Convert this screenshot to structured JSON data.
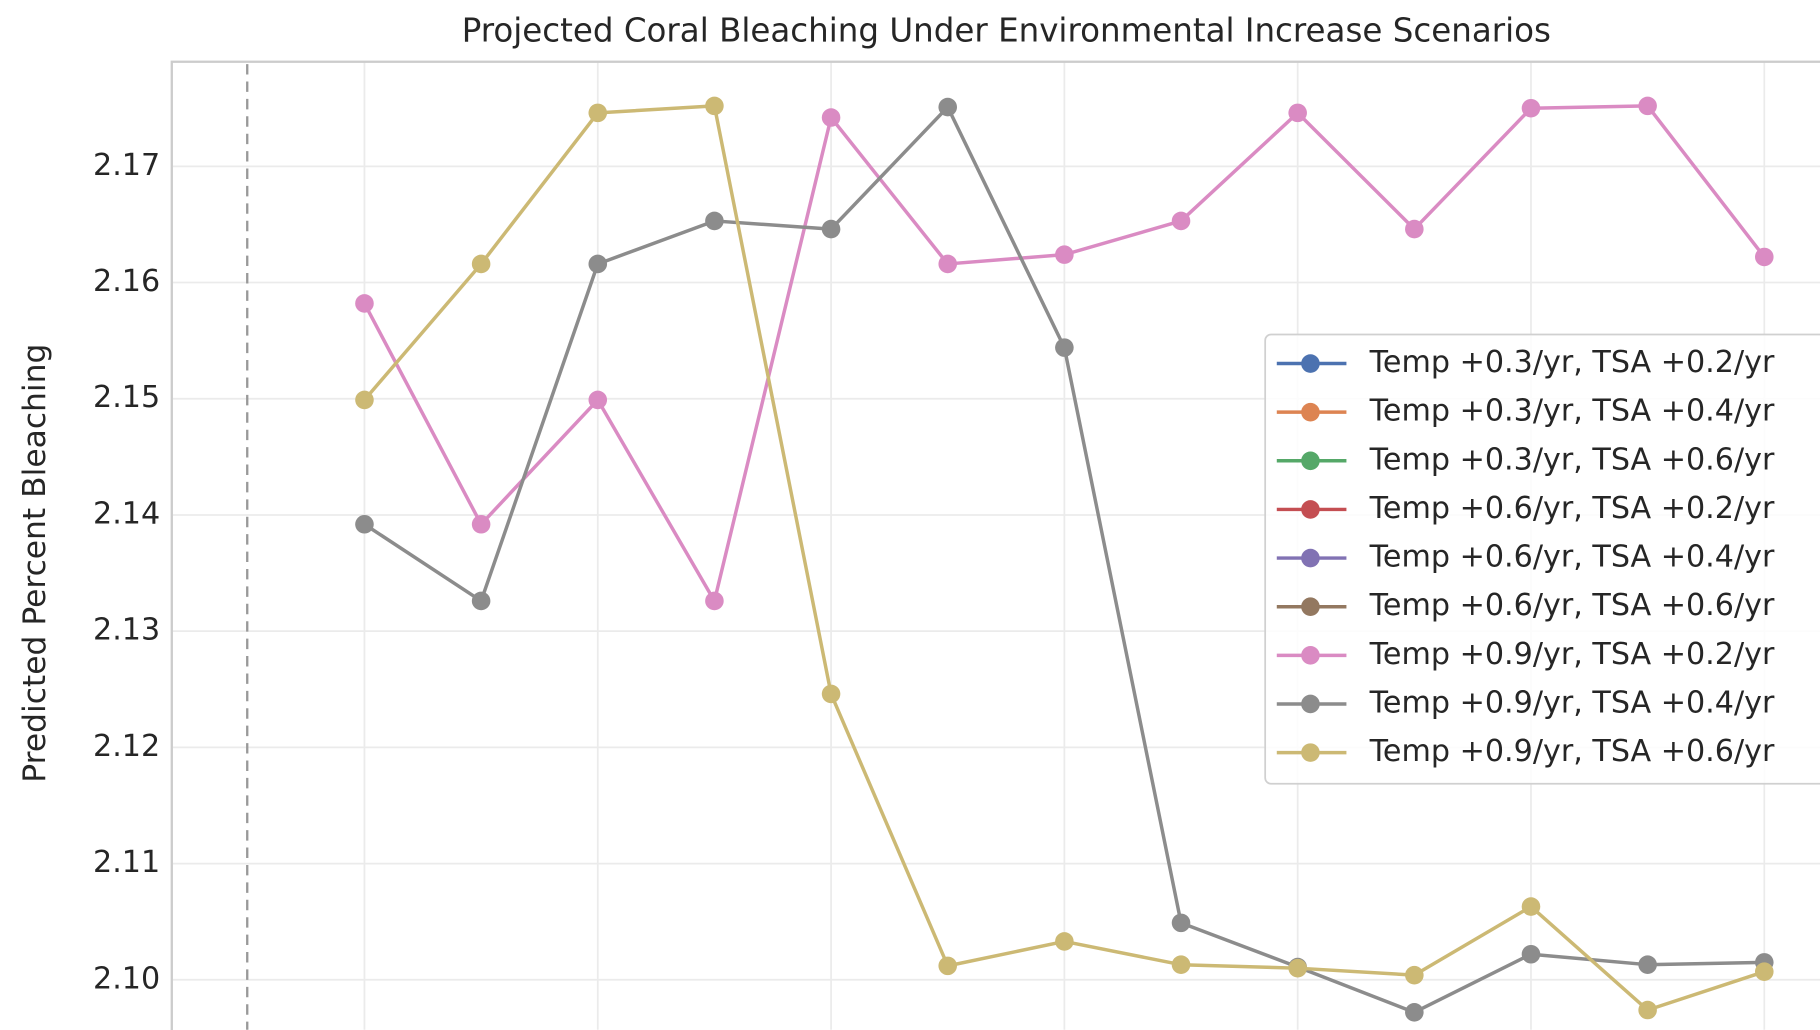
{
  "chart_data": {
    "type": "line",
    "title": "Projected Coral Bleaching Under Environmental Increase Scenarios",
    "y_label": "Predicted Percent Bleaching",
    "categories": [
      null,
      null,
      null,
      null,
      null,
      null,
      null,
      null,
      null,
      null,
      null,
      null,
      null
    ],
    "ylim": [
      2.0957,
      2.179
    ],
    "yticks": [
      {
        "value": 2.1,
        "label": "2.10"
      },
      2.11,
      2.12,
      2.13,
      2.14,
      2.15,
      2.16,
      2.17
    ],
    "grid": true,
    "legend": "right",
    "series": [
      {
        "name": "Temp +0.3/yr, TSA +0.2/yr",
        "color": "#4c72b0",
        "values": [
          null,
          null,
          null,
          null,
          null,
          null,
          null,
          null,
          null,
          null,
          null,
          null,
          null
        ]
      },
      {
        "name": "Temp +0.3/yr, TSA +0.4/yr",
        "color": "#dd8452",
        "values": [
          null,
          null,
          null,
          null,
          null,
          null,
          null,
          null,
          null,
          null,
          null,
          null,
          null
        ]
      },
      {
        "name": "Temp +0.3/yr, TSA +0.6/yr",
        "color": "#55a868",
        "values": [
          null,
          null,
          null,
          null,
          null,
          null,
          null,
          null,
          null,
          null,
          null,
          null,
          null
        ]
      },
      {
        "name": "Temp +0.6/yr, TSA +0.2/yr",
        "color": "#c44e52",
        "values": [
          null,
          null,
          null,
          null,
          null,
          null,
          null,
          null,
          null,
          null,
          null,
          null,
          null
        ]
      },
      {
        "name": "Temp +0.6/yr, TSA +0.4/yr",
        "color": "#8172b3",
        "values": [
          null,
          null,
          null,
          null,
          null,
          null,
          null,
          null,
          null,
          null,
          null,
          null,
          null
        ]
      },
      {
        "name": "Temp +0.6/yr, TSA +0.6/yr",
        "color": "#937860",
        "values": [
          null,
          null,
          null,
          null,
          null,
          null,
          null,
          null,
          null,
          null,
          null,
          null,
          null
        ]
      },
      {
        "name": "Temp +0.9/yr, TSA +0.2/yr",
        "color": "#da8bc3",
        "values": [
          2.1582,
          2.1392,
          2.1499,
          2.1326,
          2.1742,
          2.1616,
          2.1624,
          2.1653,
          2.1746,
          2.1646,
          2.175,
          2.1752,
          2.1622
        ]
      },
      {
        "name": "Temp +0.9/yr, TSA +0.4/yr",
        "color": "#8c8c8c",
        "values": [
          2.1392,
          2.1326,
          2.1616,
          2.1653,
          2.1646,
          2.1751,
          2.1544,
          2.1049,
          2.1011,
          2.0972,
          2.1022,
          2.1013,
          2.1015
        ]
      },
      {
        "name": "Temp +0.9/yr, TSA +0.6/yr",
        "color": "#ccb974",
        "values": [
          2.1499,
          2.1616,
          2.1746,
          2.1752,
          2.1246,
          2.1012,
          2.1033,
          2.1013,
          2.101,
          2.1004,
          2.1063,
          2.0974,
          2.1007
        ]
      }
    ]
  }
}
